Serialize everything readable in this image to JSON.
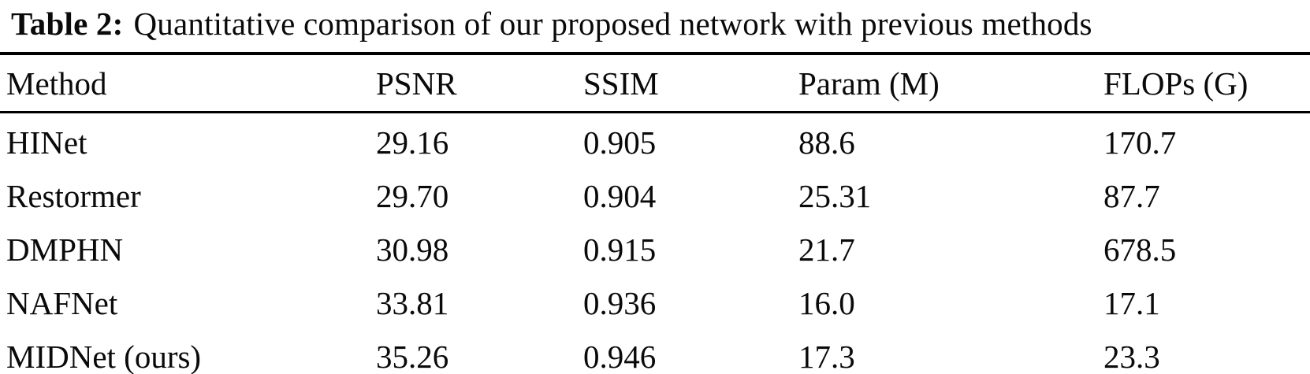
{
  "caption": {
    "label": "Table 2:",
    "text": "Quantitative comparison of our proposed network with previous methods"
  },
  "table": {
    "columns": [
      "Method",
      "PSNR",
      "SSIM",
      "Param (M)",
      "FLOPs (G)"
    ],
    "rows": [
      {
        "method": "HINet",
        "psnr": "29.16",
        "ssim": "0.905",
        "param": "88.6",
        "flops": "170.7"
      },
      {
        "method": "Restormer",
        "psnr": "29.70",
        "ssim": "0.904",
        "param": "25.31",
        "flops": "87.7"
      },
      {
        "method": "DMPHN",
        "psnr": "30.98",
        "ssim": "0.915",
        "param": "21.7",
        "flops": "678.5"
      },
      {
        "method": "NAFNet",
        "psnr": "33.81",
        "ssim": "0.936",
        "param": "16.0",
        "flops": "17.1"
      },
      {
        "method": "MIDNet (ours)",
        "psnr": "35.26",
        "ssim": "0.946",
        "param": "17.3",
        "flops": "23.3"
      }
    ]
  },
  "colors": {
    "text": "#000000",
    "background": "#ffffff",
    "rule": "#000000"
  }
}
